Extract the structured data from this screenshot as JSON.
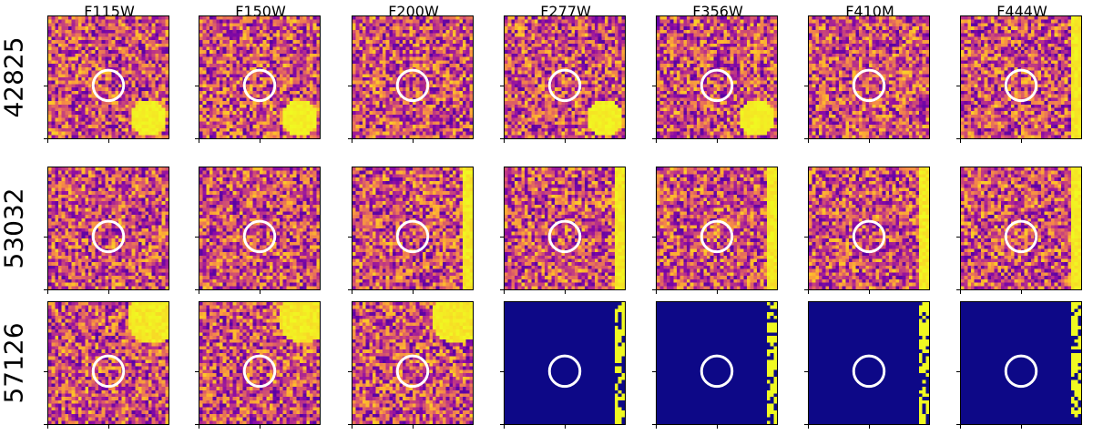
{
  "filters": [
    "F115W",
    "F150W",
    "F200W",
    "F277W",
    "F356W",
    "F410M",
    "F444W"
  ],
  "sources": [
    "42825",
    "53032",
    "57126"
  ],
  "colormap": {
    "low": "#0d0887",
    "mid": "#cc4778",
    "high": "#f0f921"
  },
  "aperture_color": "#ffffff",
  "panels": [
    [
      "noise-with-blob-lower-right",
      "noise-with-blob-lower-right",
      "noise",
      "noise-with-blob-lower-right",
      "noise-with-blob-lower-right",
      "noise",
      "noise-with-edge-right"
    ],
    [
      "noise",
      "noise",
      "noise-with-edge-right",
      "noise-with-edge-right",
      "noise-with-edge-right",
      "noise-with-edge-right",
      "noise-with-edge-right"
    ],
    [
      "noise-with-blob-upper-right",
      "noise-with-blob-upper-right",
      "noise-with-blob-upper-right",
      "masked",
      "masked",
      "masked",
      "masked"
    ]
  ]
}
